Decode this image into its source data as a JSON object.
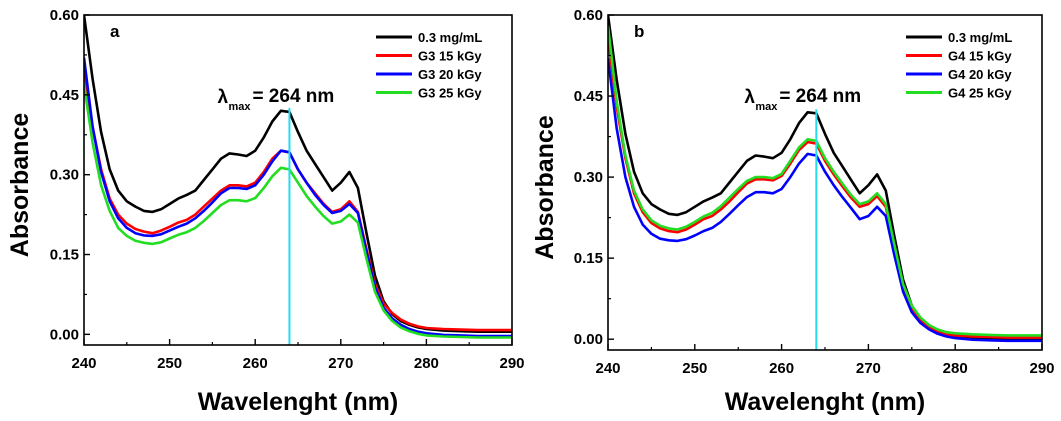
{
  "chart_data": [
    {
      "type": "line",
      "panel_label": "a",
      "xlabel": "Wavelenght (nm)",
      "ylabel": "Absorbance",
      "xlim": [
        240,
        290
      ],
      "ylim": [
        -0.02,
        0.6
      ],
      "xticks": [
        "240",
        "250",
        "260",
        "270",
        "280",
        "290"
      ],
      "yticks": [
        "0.00",
        "0.15",
        "0.30",
        "0.45",
        "0.60"
      ],
      "annotation": {
        "lambda": "λ",
        "sub": "max",
        "text": "= 264 nm",
        "x": 264
      },
      "legend_position": "top-right",
      "series": [
        {
          "name": "0.3 mg/mL",
          "color": "#000000",
          "x": [
            240,
            241,
            242,
            243,
            244,
            245,
            246,
            247,
            248,
            249,
            250,
            251,
            252,
            253,
            254,
            255,
            256,
            257,
            258,
            259,
            260,
            261,
            262,
            263,
            264,
            265,
            266,
            267,
            268,
            269,
            270,
            271,
            272,
            273,
            274,
            275,
            276,
            277,
            278,
            279,
            280,
            282,
            284,
            286,
            288,
            290
          ],
          "y": [
            0.6,
            0.48,
            0.38,
            0.31,
            0.27,
            0.25,
            0.24,
            0.232,
            0.23,
            0.235,
            0.245,
            0.255,
            0.262,
            0.27,
            0.29,
            0.31,
            0.33,
            0.34,
            0.338,
            0.335,
            0.345,
            0.37,
            0.4,
            0.42,
            0.418,
            0.38,
            0.345,
            0.32,
            0.295,
            0.27,
            0.285,
            0.305,
            0.275,
            0.19,
            0.11,
            0.062,
            0.038,
            0.025,
            0.018,
            0.013,
            0.01,
            0.007,
            0.006,
            0.005,
            0.005,
            0.005
          ]
        },
        {
          "name": "G3 15 kGy",
          "color": "#ff0000",
          "x": [
            240,
            241,
            242,
            243,
            244,
            245,
            246,
            247,
            248,
            249,
            250,
            251,
            252,
            253,
            254,
            255,
            256,
            257,
            258,
            259,
            260,
            261,
            262,
            263,
            264,
            265,
            266,
            267,
            268,
            269,
            270,
            271,
            272,
            273,
            274,
            275,
            276,
            277,
            278,
            279,
            280,
            282,
            284,
            286,
            288,
            290
          ],
          "y": [
            0.5,
            0.39,
            0.31,
            0.255,
            0.225,
            0.208,
            0.198,
            0.193,
            0.19,
            0.195,
            0.202,
            0.21,
            0.215,
            0.225,
            0.24,
            0.255,
            0.27,
            0.28,
            0.28,
            0.278,
            0.285,
            0.305,
            0.33,
            0.345,
            0.342,
            0.31,
            0.285,
            0.265,
            0.245,
            0.23,
            0.235,
            0.25,
            0.23,
            0.16,
            0.095,
            0.058,
            0.04,
            0.028,
            0.02,
            0.015,
            0.012,
            0.01,
            0.009,
            0.008,
            0.008,
            0.008
          ]
        },
        {
          "name": "G3 20 kGy",
          "color": "#0000ff",
          "x": [
            240,
            241,
            242,
            243,
            244,
            245,
            246,
            247,
            248,
            249,
            250,
            251,
            252,
            253,
            254,
            255,
            256,
            257,
            258,
            259,
            260,
            261,
            262,
            263,
            264,
            265,
            266,
            267,
            268,
            269,
            270,
            271,
            272,
            273,
            274,
            275,
            276,
            277,
            278,
            279,
            280,
            282,
            284,
            286,
            288,
            290
          ],
          "y": [
            0.52,
            0.39,
            0.305,
            0.25,
            0.218,
            0.2,
            0.19,
            0.186,
            0.185,
            0.188,
            0.195,
            0.202,
            0.208,
            0.218,
            0.232,
            0.248,
            0.265,
            0.275,
            0.275,
            0.273,
            0.28,
            0.3,
            0.325,
            0.345,
            0.342,
            0.31,
            0.285,
            0.262,
            0.243,
            0.228,
            0.232,
            0.245,
            0.228,
            0.155,
            0.088,
            0.05,
            0.03,
            0.018,
            0.01,
            0.005,
            0.002,
            -0.001,
            -0.002,
            -0.003,
            -0.003,
            -0.003
          ]
        },
        {
          "name": "G3 25 kGy",
          "color": "#22dd22",
          "x": [
            240,
            241,
            242,
            243,
            244,
            245,
            246,
            247,
            248,
            249,
            250,
            251,
            252,
            253,
            254,
            255,
            256,
            257,
            258,
            259,
            260,
            261,
            262,
            263,
            264,
            265,
            266,
            267,
            268,
            269,
            270,
            271,
            272,
            273,
            274,
            275,
            276,
            277,
            278,
            279,
            280,
            282,
            284,
            286,
            288,
            290
          ],
          "y": [
            0.47,
            0.36,
            0.28,
            0.232,
            0.2,
            0.185,
            0.176,
            0.172,
            0.17,
            0.173,
            0.18,
            0.187,
            0.192,
            0.2,
            0.213,
            0.228,
            0.243,
            0.252,
            0.252,
            0.25,
            0.256,
            0.275,
            0.297,
            0.313,
            0.31,
            0.285,
            0.26,
            0.24,
            0.222,
            0.208,
            0.212,
            0.225,
            0.21,
            0.142,
            0.08,
            0.045,
            0.025,
            0.013,
            0.006,
            0.001,
            -0.002,
            -0.004,
            -0.005,
            -0.006,
            -0.006,
            -0.006
          ]
        }
      ]
    },
    {
      "type": "line",
      "panel_label": "b",
      "xlabel": "Wavelenght (nm)",
      "ylabel": "Absorbance",
      "xlim": [
        240,
        290
      ],
      "ylim": [
        -0.02,
        0.6
      ],
      "xticks": [
        "240",
        "250",
        "260",
        "270",
        "280",
        "290"
      ],
      "yticks": [
        "0.00",
        "0.15",
        "0.30",
        "0.45",
        "0.60"
      ],
      "annotation": {
        "lambda": "λ",
        "sub": "max",
        "text": "= 264 nm",
        "x": 264
      },
      "legend_position": "top-right",
      "series": [
        {
          "name": "0.3 mg/mL",
          "color": "#000000",
          "x": [
            240,
            241,
            242,
            243,
            244,
            245,
            246,
            247,
            248,
            249,
            250,
            251,
            252,
            253,
            254,
            255,
            256,
            257,
            258,
            259,
            260,
            261,
            262,
            263,
            264,
            265,
            266,
            267,
            268,
            269,
            270,
            271,
            272,
            273,
            274,
            275,
            276,
            277,
            278,
            279,
            280,
            282,
            284,
            286,
            288,
            290
          ],
          "y": [
            0.6,
            0.48,
            0.38,
            0.31,
            0.27,
            0.25,
            0.24,
            0.232,
            0.23,
            0.235,
            0.245,
            0.255,
            0.262,
            0.27,
            0.29,
            0.31,
            0.33,
            0.34,
            0.338,
            0.335,
            0.345,
            0.37,
            0.4,
            0.42,
            0.418,
            0.38,
            0.345,
            0.32,
            0.295,
            0.27,
            0.285,
            0.305,
            0.275,
            0.19,
            0.11,
            0.062,
            0.035,
            0.02,
            0.012,
            0.008,
            0.005,
            0.002,
            0.0,
            -0.001,
            -0.001,
            -0.001
          ]
        },
        {
          "name": "G4 15 kGy",
          "color": "#ff0000",
          "x": [
            240,
            241,
            242,
            243,
            244,
            245,
            246,
            247,
            248,
            249,
            250,
            251,
            252,
            253,
            254,
            255,
            256,
            257,
            258,
            259,
            260,
            261,
            262,
            263,
            264,
            265,
            266,
            267,
            268,
            269,
            270,
            271,
            272,
            273,
            274,
            275,
            276,
            277,
            278,
            279,
            280,
            282,
            284,
            286,
            288,
            290
          ],
          "y": [
            0.56,
            0.43,
            0.335,
            0.27,
            0.235,
            0.215,
            0.205,
            0.2,
            0.198,
            0.203,
            0.212,
            0.222,
            0.228,
            0.24,
            0.255,
            0.272,
            0.288,
            0.296,
            0.296,
            0.294,
            0.302,
            0.325,
            0.35,
            0.365,
            0.362,
            0.33,
            0.305,
            0.283,
            0.262,
            0.245,
            0.25,
            0.265,
            0.245,
            0.17,
            0.098,
            0.058,
            0.036,
            0.022,
            0.014,
            0.009,
            0.007,
            0.005,
            0.004,
            0.003,
            0.003,
            0.003
          ]
        },
        {
          "name": "G4 20 kGy",
          "color": "#0000ff",
          "x": [
            240,
            241,
            242,
            243,
            244,
            245,
            246,
            247,
            248,
            249,
            250,
            251,
            252,
            253,
            254,
            255,
            256,
            257,
            258,
            259,
            260,
            261,
            262,
            263,
            264,
            265,
            266,
            267,
            268,
            269,
            270,
            271,
            272,
            273,
            274,
            275,
            276,
            277,
            278,
            279,
            280,
            282,
            284,
            286,
            288,
            290
          ],
          "y": [
            0.52,
            0.39,
            0.3,
            0.245,
            0.212,
            0.195,
            0.186,
            0.183,
            0.182,
            0.185,
            0.192,
            0.2,
            0.206,
            0.217,
            0.232,
            0.248,
            0.263,
            0.272,
            0.272,
            0.27,
            0.278,
            0.3,
            0.325,
            0.343,
            0.34,
            0.31,
            0.285,
            0.263,
            0.243,
            0.222,
            0.228,
            0.245,
            0.228,
            0.155,
            0.088,
            0.05,
            0.03,
            0.018,
            0.01,
            0.005,
            0.002,
            -0.001,
            -0.002,
            -0.003,
            -0.003,
            -0.003
          ]
        },
        {
          "name": "G4 25 kGy",
          "color": "#22dd22",
          "x": [
            240,
            241,
            242,
            243,
            244,
            245,
            246,
            247,
            248,
            249,
            250,
            251,
            252,
            253,
            254,
            255,
            256,
            257,
            258,
            259,
            260,
            261,
            262,
            263,
            264,
            265,
            266,
            267,
            268,
            269,
            270,
            271,
            272,
            273,
            274,
            275,
            276,
            277,
            278,
            279,
            280,
            282,
            284,
            286,
            288,
            290
          ],
          "y": [
            0.58,
            0.44,
            0.34,
            0.275,
            0.24,
            0.22,
            0.21,
            0.205,
            0.203,
            0.208,
            0.217,
            0.227,
            0.234,
            0.246,
            0.262,
            0.278,
            0.293,
            0.3,
            0.3,
            0.298,
            0.306,
            0.33,
            0.355,
            0.37,
            0.367,
            0.335,
            0.31,
            0.288,
            0.267,
            0.25,
            0.255,
            0.27,
            0.25,
            0.175,
            0.102,
            0.062,
            0.04,
            0.026,
            0.018,
            0.013,
            0.011,
            0.009,
            0.008,
            0.007,
            0.007,
            0.007
          ]
        }
      ]
    }
  ]
}
